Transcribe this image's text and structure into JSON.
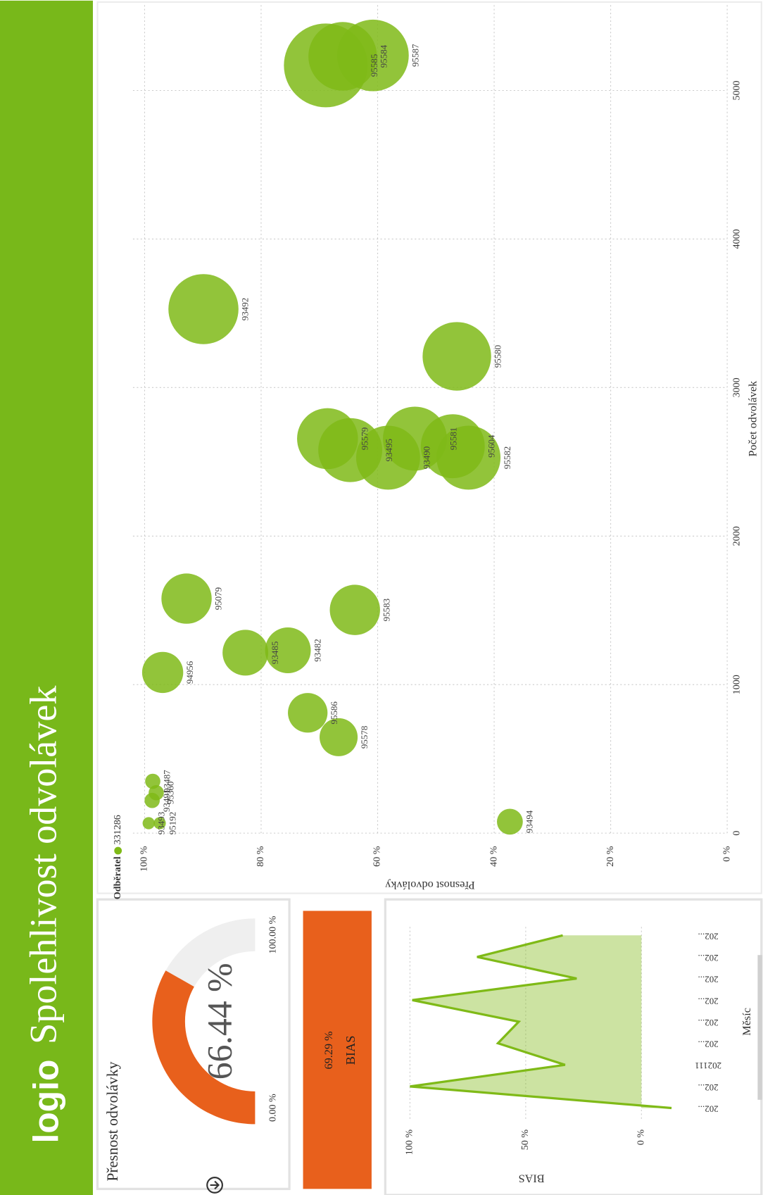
{
  "header": {
    "logo": "logio",
    "title": "Spolehlivost odvolávek"
  },
  "gauge": {
    "title": "Přesnost odvolávky",
    "value": 66.44,
    "value_label": "66.44 %",
    "min": {
      "value": 0,
      "label": "0.00 %"
    },
    "max": {
      "value": 100,
      "label": "100.00 %"
    }
  },
  "bias_card": {
    "value": 69.29,
    "value_label": "69.29 %",
    "label": "BIAS"
  },
  "chart_data": [
    {
      "type": "scatter",
      "legend_title": "Odběratel",
      "xlabel": "Počet odvolávek",
      "ylabel": "Přesnost odvolávky",
      "xlim": [
        0,
        5580
      ],
      "xticks": [
        0,
        1000,
        2000,
        3000,
        4000,
        5000
      ],
      "ylim": [
        0,
        102
      ],
      "yticks": [
        {
          "value": 0,
          "label": "0 %"
        },
        {
          "value": 20,
          "label": "20 %"
        },
        {
          "value": 40,
          "label": "40 %"
        },
        {
          "value": 60,
          "label": "60 %"
        },
        {
          "value": 80,
          "label": "80 %"
        },
        {
          "value": 100,
          "label": "100 %"
        }
      ],
      "grid": true,
      "series": [
        {
          "name": "331286",
          "color": "#7fba17",
          "labels": [
            "93494",
            "95578",
            "95586",
            "94956",
            "93485",
            "93482",
            "95583",
            "95079",
            "95579",
            "93495",
            "93490",
            "95581",
            "95604",
            "95582",
            "95580",
            "93492",
            "95585",
            "95584",
            "95587",
            "93487",
            "95360",
            "95192",
            "93493",
            "93491"
          ],
          "x": [
            77,
            646,
            810,
            1082,
            1215,
            1231,
            1503,
            1579,
            2656,
            2579,
            2528,
            2656,
            2605,
            2528,
            3210,
            3528,
            5169,
            5230,
            5236,
            349,
            272,
            67,
            67,
            220
          ],
          "values": [
            37.3,
            66.7,
            72.0,
            96.9,
            82.7,
            75.4,
            63.9,
            92.8,
            68.6,
            64.7,
            58.2,
            53.6,
            47.1,
            44.4,
            46.4,
            89.9,
            68.9,
            66.0,
            60.8,
            98.6,
            98.0,
            97.4,
            99.3,
            98.7
          ],
          "sizes": [
            17,
            25,
            26,
            27,
            30,
            30,
            33,
            33,
            40,
            42,
            42,
            42,
            42,
            42,
            45,
            46,
            55,
            45,
            47,
            10,
            10,
            8,
            8,
            10
          ]
        }
      ]
    },
    {
      "type": "area",
      "xlabel": "Měsíc",
      "ylabel": "BIAS",
      "color": "#7fba17",
      "categories": [
        "202...",
        "202...",
        "202111",
        "202...",
        "202...",
        "202...",
        "202...",
        "202...",
        "202..."
      ],
      "values": [
        -13,
        100,
        33,
        62,
        53,
        99,
        28,
        71,
        34
      ],
      "ylim": [
        -15,
        110
      ],
      "yticks": [
        {
          "value": 0,
          "label": "0 %"
        },
        {
          "value": 50,
          "label": "50 %"
        },
        {
          "value": 100,
          "label": "100 %"
        }
      ],
      "grid": true
    }
  ]
}
